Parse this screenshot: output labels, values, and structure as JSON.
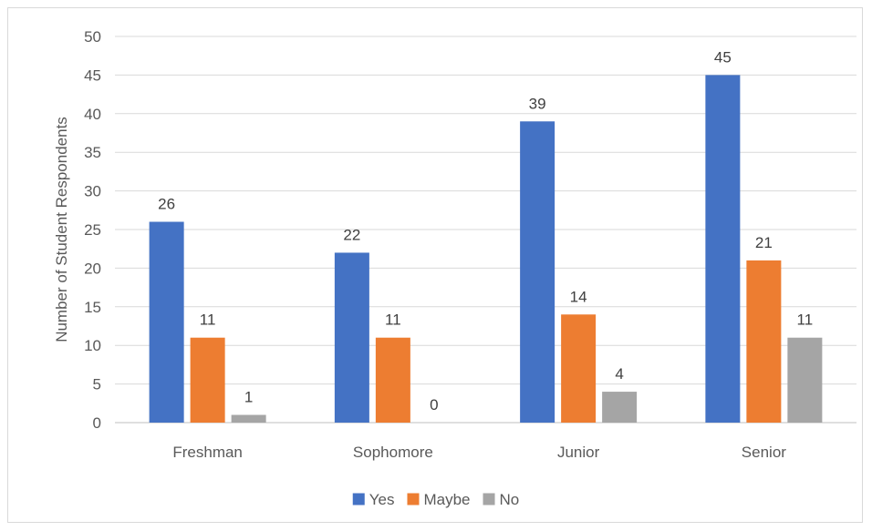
{
  "chart_data": {
    "type": "bar",
    "title": "",
    "xlabel": "",
    "ylabel": "Number of Student Respondents",
    "categories": [
      "Freshman",
      "Sophomore",
      "Junior",
      "Senior"
    ],
    "series": [
      {
        "name": "Yes",
        "values": [
          26,
          22,
          39,
          45
        ],
        "color": "#4472C4"
      },
      {
        "name": "Maybe",
        "values": [
          11,
          11,
          14,
          21
        ],
        "color": "#ED7D31"
      },
      {
        "name": "No",
        "values": [
          1,
          0,
          4,
          11
        ],
        "color": "#A5A5A5"
      }
    ],
    "ylim": [
      0,
      50
    ],
    "yticks": [
      0,
      5,
      10,
      15,
      20,
      25,
      30,
      35,
      40,
      45,
      50
    ],
    "grid": true,
    "legend": "bottom",
    "data_labels": true
  }
}
